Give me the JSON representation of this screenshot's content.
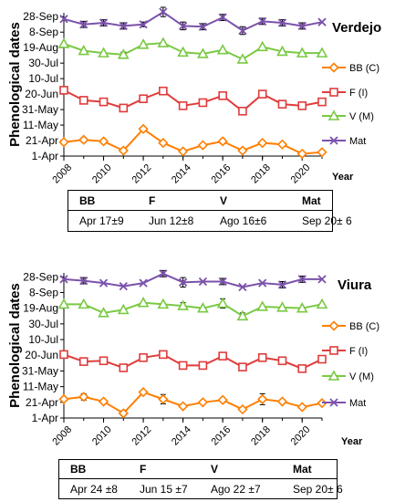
{
  "chart_data": [
    {
      "type": "line",
      "title": "Verdejo",
      "xlabel": "Year",
      "ylabel": "Phenological dates",
      "x": [
        2008,
        2009,
        2010,
        2011,
        2012,
        2013,
        2014,
        2015,
        2016,
        2017,
        2018,
        2019,
        2020,
        2021
      ],
      "x_ticks": [
        "2008",
        "2010",
        "2012",
        "2014",
        "2016",
        "2018",
        "2020"
      ],
      "y_ticks": [
        "1-Apr",
        "21-Apr",
        "11-May",
        "31-May",
        "20-Jun",
        "10-Jul",
        "30-Jul",
        "19-Aug",
        "8-Sep",
        "28-Sep"
      ],
      "ylim": [
        "1-Apr",
        "3-Oct"
      ],
      "legend_position": "right",
      "series": [
        {
          "name": "BB (C)",
          "color": "#FF7F00",
          "marker": "diamond",
          "values": [
            "19-Apr",
            "22-Apr",
            "20-Apr",
            "8-Apr",
            "6-May",
            "18-Apr",
            "7-Apr",
            "15-Apr",
            "20-Apr",
            "8-Apr",
            "18-Apr",
            "16-Apr",
            "4-Apr",
            "6-Apr"
          ]
        },
        {
          "name": "F (I)",
          "color": "#E03C3C",
          "marker": "square",
          "values": [
            "25-Jun",
            "12-Jun",
            "10-Jun",
            "2-Jun",
            "14-Jun",
            "24-Jun",
            "5-Jun",
            "9-Jun",
            "18-Jun",
            "29-May",
            "20-Jun",
            "7-Jun",
            "5-Jun",
            "10-Jun"
          ]
        },
        {
          "name": "V (M)",
          "color": "#7AC943",
          "marker": "triangle",
          "values": [
            "24-Aug",
            "15-Aug",
            "12-Aug",
            "10-Aug",
            "23-Aug",
            "25-Aug",
            "13-Aug",
            "11-Aug",
            "16-Aug",
            "4-Aug",
            "20-Aug",
            "14-Aug",
            "12-Aug",
            "12-Aug"
          ]
        },
        {
          "name": "Mat",
          "color": "#7B52AB",
          "marker": "x",
          "values": [
            "25-Sep",
            "18-Sep",
            "20-Sep",
            "16-Sep",
            "18-Sep",
            "4-Oct",
            "16-Sep",
            "15-Sep",
            "27-Sep",
            "10-Sep",
            "22-Sep",
            "20-Sep",
            "16-Sep",
            "21-Sep"
          ]
        }
      ],
      "summary_table": {
        "headers": [
          "BB",
          "F",
          "V",
          "Mat"
        ],
        "values": [
          "Apr 17±9",
          "Jun 12±8",
          "Ago 16±6",
          "Sep 20± 6"
        ]
      }
    },
    {
      "type": "line",
      "title": "Viura",
      "xlabel": "Year",
      "ylabel": "Phenological dates",
      "x": [
        2008,
        2009,
        2010,
        2011,
        2012,
        2013,
        2014,
        2015,
        2016,
        2017,
        2018,
        2019,
        2020,
        2021
      ],
      "x_ticks": [
        "2008",
        "2010",
        "2012",
        "2014",
        "2016",
        "2018",
        "2020"
      ],
      "y_ticks": [
        "1-Apr",
        "21-Apr",
        "11-May",
        "31-May",
        "20-Jun",
        "10-Jul",
        "30-Jul",
        "19-Aug",
        "8-Sep",
        "28-Sep"
      ],
      "ylim": [
        "1-Apr",
        "3-Oct"
      ],
      "legend_position": "right",
      "series": [
        {
          "name": "BB (C)",
          "color": "#FF7F00",
          "marker": "diamond",
          "values": [
            "25-Apr",
            "28-Apr",
            "22-Apr",
            "7-Apr",
            "4-May",
            "25-Apr",
            "16-Apr",
            "21-Apr",
            "24-Apr",
            "12-Apr",
            "25-Apr",
            "22-Apr",
            "15-Apr",
            "20-Apr"
          ]
        },
        {
          "name": "F (I)",
          "color": "#E03C3C",
          "marker": "square",
          "values": [
            "21-Jun",
            "12-Jun",
            "13-Jun",
            "4-Jun",
            "17-Jun",
            "21-Jun",
            "7-Jun",
            "7-Jun",
            "19-Jun",
            "5-Jun",
            "17-Jun",
            "13-Jun",
            "3-Jun",
            "15-Jun"
          ]
        },
        {
          "name": "V (M)",
          "color": "#7AC943",
          "marker": "triangle",
          "values": [
            "24-Aug",
            "24-Aug",
            "13-Aug",
            "17-Aug",
            "26-Aug",
            "24-Aug",
            "22-Aug",
            "19-Aug",
            "25-Aug",
            "9-Aug",
            "21-Aug",
            "20-Aug",
            "19-Aug",
            "24-Aug"
          ]
        },
        {
          "name": "Mat",
          "color": "#7B52AB",
          "marker": "x",
          "values": [
            "25-Sep",
            "23-Sep",
            "20-Sep",
            "16-Sep",
            "20-Sep",
            "2-Oct",
            "21-Sep",
            "22-Sep",
            "22-Sep",
            "15-Sep",
            "20-Sep",
            "18-Sep",
            "25-Sep",
            "25-Sep"
          ]
        }
      ],
      "summary_table": {
        "headers": [
          "BB",
          "F",
          "V",
          "Mat"
        ],
        "values": [
          "Apr 24 ±8",
          "Jun 15 ±7",
          "Ago 22 ±7",
          "Sep 20± 6"
        ]
      }
    }
  ]
}
